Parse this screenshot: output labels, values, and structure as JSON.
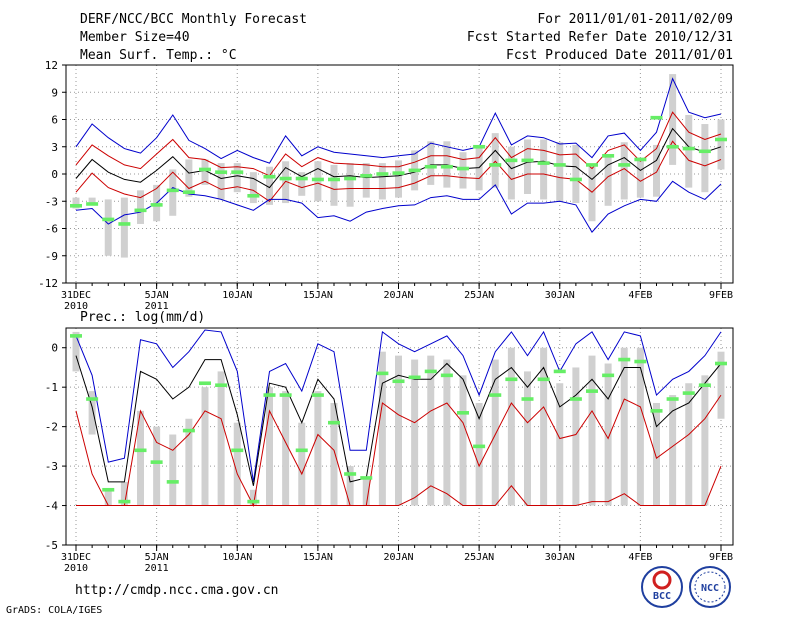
{
  "header": {
    "left": [
      "DERF/NCC/BCC Monthly Forecast",
      "Member Size=40",
      "Mean Surf. Temp.: °C"
    ],
    "right": [
      "For 2011/01/01-2011/02/09",
      "Fcst Started Refer Date 2010/12/31",
      "Fcst Produced Date 2011/01/01"
    ]
  },
  "footer": {
    "url": "http://cmdp.ncc.cma.gov.cn",
    "grads": "GrADS: COLA/IGES",
    "logo_bcc": "BCC",
    "logo_ncc": "NCC"
  },
  "chart_data": [
    {
      "type": "line",
      "title": "Mean Surf. Temp.: °C",
      "x": [
        0,
        1,
        2,
        3,
        4,
        5,
        6,
        7,
        8,
        9,
        10,
        11,
        12,
        13,
        14,
        15,
        16,
        17,
        18,
        19,
        20,
        21,
        22,
        23,
        24,
        25,
        26,
        27,
        28,
        29,
        30,
        31,
        32,
        33,
        34,
        35,
        36,
        37,
        38,
        39,
        40
      ],
      "xticks": [
        {
          "x": 0,
          "label": "31DEC",
          "sub": "2010"
        },
        {
          "x": 5,
          "label": "5JAN",
          "sub": "2011"
        },
        {
          "x": 10,
          "label": "10JAN",
          "sub": ""
        },
        {
          "x": 15,
          "label": "15JAN",
          "sub": ""
        },
        {
          "x": 20,
          "label": "20JAN",
          "sub": ""
        },
        {
          "x": 25,
          "label": "25JAN",
          "sub": ""
        },
        {
          "x": 30,
          "label": "30JAN",
          "sub": ""
        },
        {
          "x": 35,
          "label": "4FEB",
          "sub": ""
        },
        {
          "x": 40,
          "label": "9FEB",
          "sub": ""
        }
      ],
      "yticks": [
        "12",
        "9",
        "6",
        "3",
        "0",
        "-3",
        "-6",
        "-9",
        "-12"
      ],
      "ylim": [
        -12,
        12
      ],
      "yticks_values": [
        12,
        9,
        6,
        3,
        0,
        -3,
        -6,
        -9,
        -12
      ],
      "series": [
        {
          "name": "max",
          "color": "#0000cc",
          "start": 1,
          "values": [
            3,
            5.5,
            4,
            2.8,
            2.3,
            4,
            6.5,
            3.7,
            2.8,
            1.7,
            2.6,
            1.8,
            1.2,
            4.2,
            2,
            3,
            2.4,
            2.2,
            2,
            1.8,
            2,
            2.2,
            3.4,
            3,
            2.6,
            3,
            6.7,
            3.2,
            4.2,
            4,
            3.3,
            3.4,
            1.8,
            4.2,
            4.5,
            2.6,
            4.6,
            10.5,
            6.8,
            6.2,
            6.6
          ]
        },
        {
          "name": "upper",
          "color": "#cc0000",
          "start": 1,
          "values": [
            1,
            3.2,
            2,
            1,
            0.6,
            2.2,
            3.8,
            1.8,
            1.6,
            0.7,
            0.8,
            0.6,
            -0.2,
            2.2,
            0.8,
            1.8,
            1.2,
            1.1,
            1,
            0.8,
            0.8,
            1.3,
            2,
            2,
            1.6,
            1.8,
            4,
            1.8,
            2.8,
            2.6,
            2.1,
            2.2,
            0.6,
            2.6,
            3.2,
            1.4,
            2.8,
            6.8,
            4.6,
            3.8,
            4.4
          ]
        },
        {
          "name": "mean",
          "color": "#000000",
          "start": 1,
          "values": [
            -0.5,
            1.6,
            0.2,
            -0.6,
            -0.9,
            0.4,
            1.9,
            0.1,
            0.4,
            -0.5,
            -0.2,
            -0.5,
            -1.5,
            0.7,
            -0.3,
            0.6,
            -0.3,
            -0.2,
            -0.4,
            -0.3,
            -0.2,
            0.2,
            1,
            1,
            0.6,
            0.7,
            2.6,
            0.6,
            1.3,
            1.4,
            0.9,
            0.8,
            -0.6,
            1,
            1.8,
            0.4,
            1.5,
            5,
            3,
            2.4,
            3
          ]
        },
        {
          "name": "lower",
          "color": "#cc0000",
          "start": 1,
          "values": [
            -2,
            0.1,
            -1.5,
            -2.2,
            -2.6,
            -1.6,
            0.2,
            -1.6,
            -0.8,
            -1.7,
            -1.4,
            -1.8,
            -3,
            -0.8,
            -1.5,
            -1,
            -1.7,
            -1.6,
            -1.6,
            -1.6,
            -1.5,
            -1,
            -0.2,
            -0.2,
            -0.4,
            -0.5,
            1.4,
            -0.6,
            0,
            0,
            -0.4,
            -0.6,
            -2,
            -0.3,
            0.6,
            -0.8,
            0.2,
            3.6,
            1.5,
            0.9,
            1.6
          ]
        },
        {
          "name": "min",
          "color": "#0000cc",
          "start": 1,
          "values": [
            -4,
            -3.8,
            -5.5,
            -4.5,
            -4.2,
            -3.2,
            -1.5,
            -2.2,
            -2.4,
            -2.8,
            -3.4,
            -4,
            -2.8,
            -2.8,
            -3.2,
            -4.8,
            -4.6,
            -5.2,
            -4.2,
            -3.8,
            -3.5,
            -3.4,
            -2.6,
            -2.4,
            -2.8,
            -2.8,
            -1.2,
            -4.4,
            -3.2,
            -3.2,
            -3,
            -3.4,
            -6.4,
            -4.4,
            -3.5,
            -2.8,
            -3,
            -0.8,
            -2,
            -2.8,
            -1.1
          ]
        }
      ],
      "bars": {
        "color": "#d0d0d0",
        "start": 1,
        "lo": [
          -3.8,
          -3.4,
          -9,
          -9.2,
          -5.5,
          -5.2,
          -4.6,
          -2.5,
          -1.2,
          -2.8,
          -2,
          -3.2,
          -3.4,
          -3.2,
          -2.4,
          -3,
          -3.5,
          -3.6,
          -2.6,
          -2.8,
          -2.6,
          -1.8,
          -1.2,
          -1.5,
          -1.6,
          -1.8,
          -1.5,
          -2.8,
          -2.2,
          -2.8,
          -3,
          -3.2,
          -5.2,
          -3.5,
          -2.8,
          -2.6,
          -2.5,
          1,
          -1.5,
          -2,
          0.5
        ],
        "hi": [
          -2.6,
          -2.6,
          -2.8,
          -2.6,
          -1.8,
          -1.2,
          0.5,
          1.6,
          1.6,
          1.2,
          1.2,
          0.2,
          0.8,
          1.4,
          0.2,
          1.4,
          1,
          1.2,
          1.2,
          1.2,
          1.5,
          2.6,
          3.6,
          3.6,
          2.4,
          3,
          4.5,
          3,
          3.8,
          3.8,
          3.5,
          3.2,
          0.8,
          2,
          3.5,
          1.8,
          3.2,
          11,
          6.5,
          5.5,
          6
        ]
      },
      "markers": {
        "color": "#66ee66",
        "start": 1,
        "values": [
          -3.5,
          -3.3,
          -5,
          -5.5,
          -4,
          -3.4,
          -1.8,
          -2,
          0.5,
          0.2,
          0.2,
          -2.4,
          -0.3,
          -0.5,
          -0.5,
          -0.6,
          -0.6,
          -0.5,
          -0.2,
          0,
          0.1,
          0.4,
          0.8,
          0.8,
          0.6,
          3,
          1,
          1.5,
          1.5,
          1.2,
          1,
          -0.6,
          1,
          2,
          1,
          1.6,
          6.2,
          3,
          2.8,
          2.5,
          3.8
        ]
      }
    },
    {
      "type": "line",
      "title": "Prec.: log(mm/d)",
      "x": [
        0,
        1,
        2,
        3,
        4,
        5,
        6,
        7,
        8,
        9,
        10,
        11,
        12,
        13,
        14,
        15,
        16,
        17,
        18,
        19,
        20,
        21,
        22,
        23,
        24,
        25,
        26,
        27,
        28,
        29,
        30,
        31,
        32,
        33,
        34,
        35,
        36,
        37,
        38,
        39,
        40
      ],
      "xticks": [
        {
          "x": 0,
          "label": "31DEC",
          "sub": "2010"
        },
        {
          "x": 5,
          "label": "5JAN",
          "sub": "2011"
        },
        {
          "x": 10,
          "label": "10JAN",
          "sub": ""
        },
        {
          "x": 15,
          "label": "15JAN",
          "sub": ""
        },
        {
          "x": 20,
          "label": "20JAN",
          "sub": ""
        },
        {
          "x": 25,
          "label": "25JAN",
          "sub": ""
        },
        {
          "x": 30,
          "label": "30JAN",
          "sub": ""
        },
        {
          "x": 35,
          "label": "4FEB",
          "sub": ""
        },
        {
          "x": 40,
          "label": "9FEB",
          "sub": ""
        }
      ],
      "yticks": [
        "0",
        "-1",
        "-2",
        "-3",
        "-4",
        "-5"
      ],
      "ylim": [
        -5,
        0.5
      ],
      "yticks_values": [
        0,
        -1,
        -2,
        -3,
        -4,
        -5
      ],
      "series": [
        {
          "name": "max",
          "color": "#0000cc",
          "start": 1,
          "values": [
            0.3,
            -0.7,
            -2.9,
            -2.8,
            0.2,
            0.1,
            -0.5,
            -0.1,
            0.45,
            0.4,
            -0.6,
            -3.4,
            -0.6,
            -0.4,
            -1.1,
            0.1,
            -0.1,
            -2.6,
            -2.6,
            0.4,
            0.1,
            -0.1,
            0.1,
            0.3,
            -0.2,
            -1.2,
            -0.1,
            0.4,
            -0.2,
            0.4,
            -0.6,
            0.1,
            0.4,
            -0.3,
            0.4,
            0.3,
            -1.2,
            -0.8,
            -0.6,
            -0.2,
            0.4
          ]
        },
        {
          "name": "upper",
          "color": "#000000",
          "start": 1,
          "values": [
            -0.2,
            -1.5,
            -3.4,
            -3.4,
            -0.6,
            -0.8,
            -1.3,
            -1,
            -0.3,
            -0.3,
            -1.7,
            -3.5,
            -0.9,
            -1,
            -1.9,
            -0.8,
            -1.3,
            -3.4,
            -3.3,
            -0.9,
            -0.7,
            -0.8,
            -0.8,
            -0.4,
            -0.8,
            -1.8,
            -0.8,
            -0.5,
            -1,
            -0.5,
            -1.5,
            -1.2,
            -0.8,
            -1.3,
            -0.5,
            -0.5,
            -2,
            -1.6,
            -1.4,
            -0.9,
            -0.4
          ]
        },
        {
          "name": "lower",
          "color": "#cc0000",
          "start": 1,
          "values": [
            -1.6,
            -3.2,
            -4,
            -4,
            -1.6,
            -2.4,
            -2.6,
            -2.2,
            -1.6,
            -1.8,
            -3.2,
            -4,
            -1.6,
            -2.4,
            -3.2,
            -2.2,
            -2.6,
            -4,
            -4,
            -1.4,
            -1.7,
            -1.9,
            -1.6,
            -1.4,
            -1.9,
            -3,
            -2.2,
            -1.4,
            -1.9,
            -1.5,
            -2.3,
            -2.2,
            -1.6,
            -2.3,
            -1.3,
            -1.5,
            -2.8,
            -2.5,
            -2.2,
            -1.8,
            -1.2
          ]
        },
        {
          "name": "min",
          "color": "#cc0000",
          "start": 1,
          "values": [
            -4,
            -4,
            -4,
            -4,
            -4,
            -4,
            -4,
            -4,
            -4,
            -4,
            -4,
            -4,
            -4,
            -4,
            -4,
            -4,
            -4,
            -4,
            -4,
            -4,
            -4,
            -3.8,
            -3.5,
            -3.7,
            -4,
            -4,
            -4,
            -3.5,
            -4,
            -4,
            -4,
            -4,
            -3.9,
            -3.9,
            -3.7,
            -4,
            -4,
            -4,
            -4,
            -4,
            -3
          ]
        }
      ],
      "bars": {
        "color": "#d0d0d0",
        "start": 1,
        "lo": [
          -0.6,
          -2.2,
          -4,
          -4,
          -4,
          -4,
          -4,
          -4,
          -4,
          -4,
          -4,
          -4,
          -4,
          -4,
          -4,
          -4,
          -4,
          -4,
          -4,
          -4,
          -4,
          -4,
          -4,
          -4,
          -4,
          -4,
          -4,
          -4,
          -4,
          -4,
          -4,
          -4,
          -4,
          -4,
          -4,
          -4,
          -4,
          -4,
          -4,
          -4,
          -1.8
        ],
        "hi": [
          0.4,
          -1.1,
          -3.6,
          -3.4,
          -1.6,
          -2,
          -2.2,
          -1.8,
          -1,
          -0.6,
          -1.9,
          -3.6,
          -1,
          -1.1,
          -1.9,
          -1.1,
          -1.4,
          -3,
          -3.3,
          -0.1,
          -0.2,
          -0.3,
          -0.2,
          -0.3,
          -0.7,
          -1.4,
          -0.3,
          0,
          -0.6,
          0,
          -0.9,
          -0.5,
          -0.2,
          -0.4,
          0,
          0,
          -1.4,
          -1.2,
          -0.9,
          -0.7,
          -0.1
        ]
      },
      "markers": {
        "color": "#66ee66",
        "start": 1,
        "values": [
          0.3,
          -1.3,
          -3.6,
          -3.9,
          -2.6,
          -2.9,
          -3.4,
          -2.1,
          -0.9,
          -0.95,
          -2.6,
          -3.9,
          -1.2,
          -1.2,
          -2.6,
          -1.2,
          -1.9,
          -3.2,
          -3.3,
          -0.65,
          -0.85,
          -0.75,
          -0.6,
          -0.7,
          -1.65,
          -2.5,
          -1.2,
          -0.8,
          -1.3,
          -0.8,
          -0.6,
          -1.3,
          -1.1,
          -0.7,
          -0.3,
          -0.35,
          -1.6,
          -1.3,
          -1.15,
          -0.95,
          -0.4
        ]
      }
    }
  ]
}
